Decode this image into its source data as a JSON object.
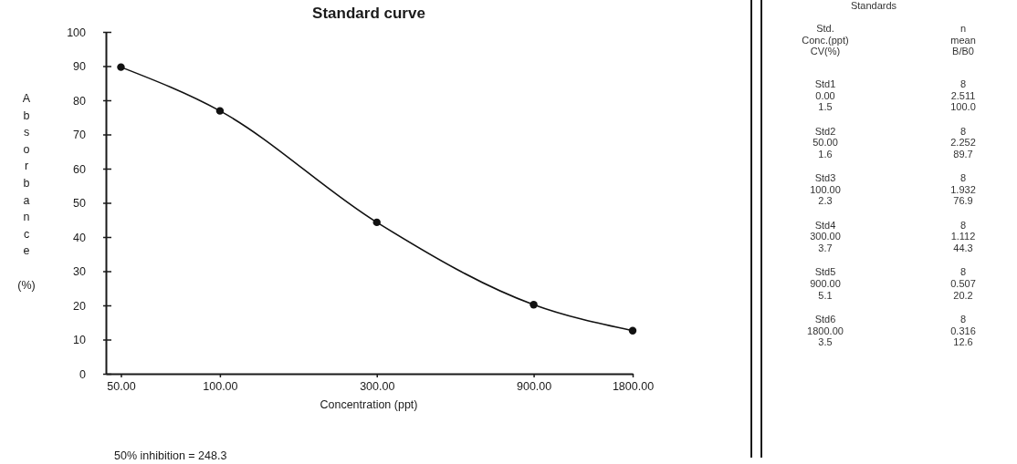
{
  "chart_data": [
    {
      "type": "line",
      "title": "Standard curve",
      "xlabel": "Concentration (ppt)",
      "ylabel": "Absorbance (%)",
      "x": [
        50,
        100,
        300,
        900,
        1800
      ],
      "values": [
        89.7,
        76.9,
        44.3,
        20.2,
        12.6
      ],
      "color": "#111111",
      "marker": "circle",
      "line_style": "solid",
      "log": "x",
      "xlim": [
        45,
        1800
      ],
      "xticks": [
        {
          "value": 50,
          "label": "50.00"
        },
        {
          "value": 100,
          "label": "100.00"
        },
        {
          "value": 300,
          "label": "300.00"
        },
        {
          "value": 900,
          "label": "900.00"
        },
        {
          "value": 1800,
          "label": "1800.00"
        }
      ],
      "ylim": [
        0,
        100
      ],
      "yticks": [
        0,
        10,
        20,
        30,
        40,
        50,
        60,
        70,
        80,
        90,
        100
      ],
      "annotations": [
        "50% inhibition = 248.3"
      ]
    },
    {
      "type": "other",
      "title": "Standards",
      "annotations": [
        "Std.",
        "n",
        "Conc.(ppt)",
        "mean",
        "CV(%)",
        "B/B0",
        "Std1",
        "8",
        "0.00",
        "2.511",
        "1.5",
        "100.0",
        "Std2",
        "8",
        "50.00",
        "2.252",
        "1.6",
        "89.7",
        "Std3",
        "8",
        "100.00",
        "1.932",
        "2.3",
        "76.9",
        "Std4",
        "8",
        "300.00",
        "1.112",
        "3.7",
        "44.3",
        "Std5",
        "8",
        "900.00",
        "0.507",
        "5.1",
        "20.2",
        "Std6",
        "8",
        "1800.00",
        "0.316",
        "3.5",
        "12.6"
      ]
    }
  ]
}
